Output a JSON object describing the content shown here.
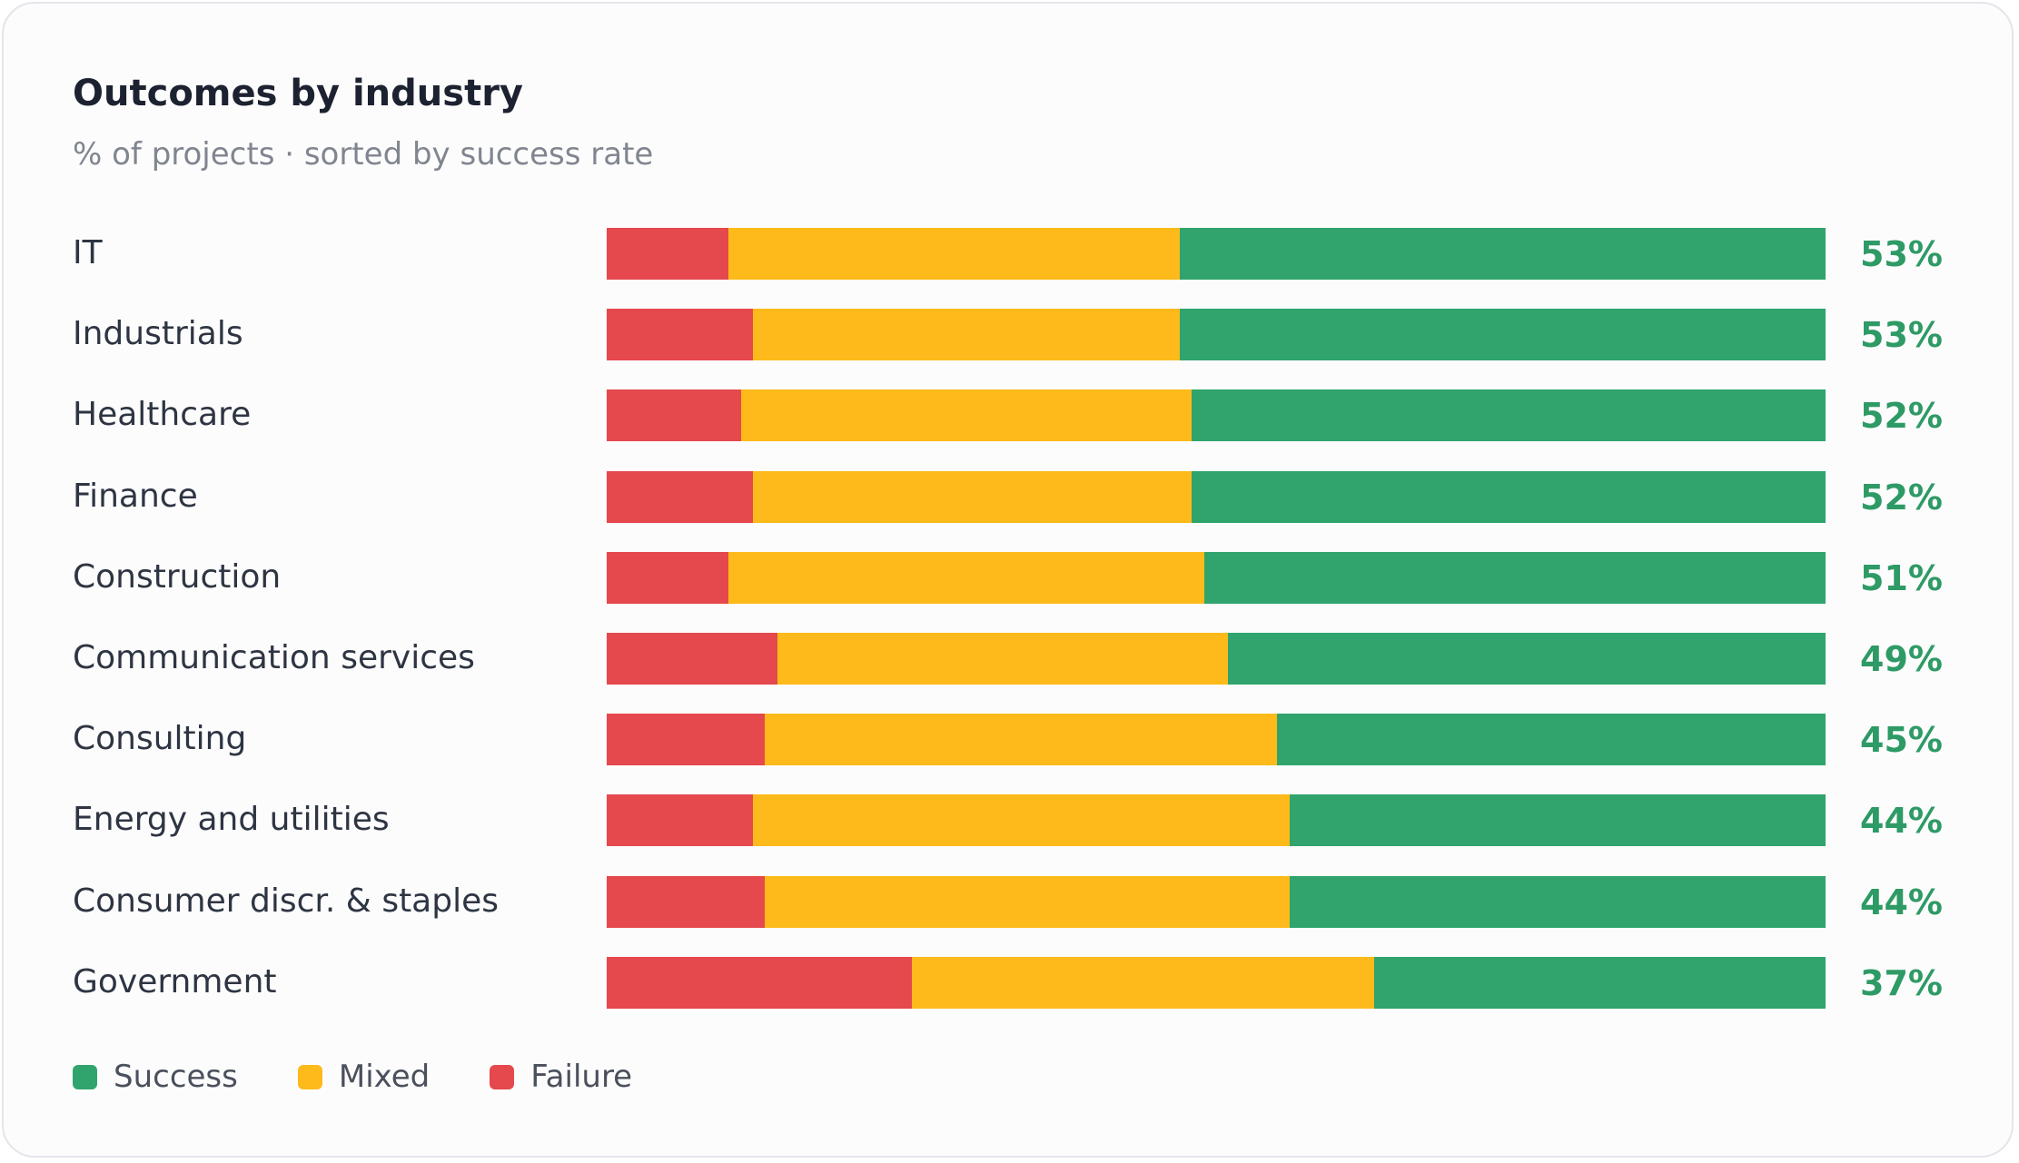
{
  "chart_data": {
    "type": "bar",
    "orientation": "horizontal",
    "stacked": true,
    "title": "Outcomes by industry",
    "subtitle": "% of projects · sorted by success rate",
    "categories": [
      "IT",
      "Industrials",
      "Healthcare",
      "Finance",
      "Construction",
      "Communication services",
      "Consulting",
      "Energy and utilities",
      "Consumer discr. & staples",
      "Government"
    ],
    "series": [
      {
        "name": "Failure",
        "color": "#e5484d",
        "values": [
          10,
          12,
          11,
          12,
          10,
          14,
          13,
          12,
          13,
          25
        ]
      },
      {
        "name": "Mixed",
        "color": "#fdba1a",
        "values": [
          37,
          35,
          37,
          36,
          39,
          37,
          42,
          44,
          43,
          38
        ]
      },
      {
        "name": "Success",
        "color": "#30a46c",
        "values": [
          53,
          53,
          52,
          52,
          51,
          49,
          45,
          44,
          44,
          37
        ]
      }
    ],
    "value_labels": [
      "53%",
      "53%",
      "52%",
      "52%",
      "51%",
      "49%",
      "45%",
      "44%",
      "44%",
      "37%"
    ],
    "xlim": [
      0,
      100
    ],
    "legend": {
      "position": "bottom-left",
      "items": [
        {
          "label": "Success",
          "color": "#30a46c"
        },
        {
          "label": "Mixed",
          "color": "#fdba1a"
        },
        {
          "label": "Failure",
          "color": "#e5484d"
        }
      ]
    },
    "grid": false
  }
}
